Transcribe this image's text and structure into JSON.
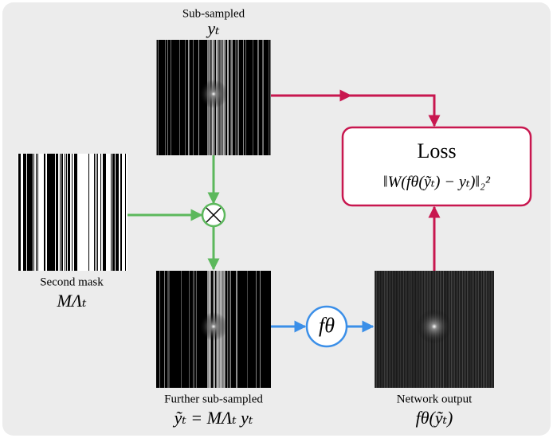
{
  "top_image": {
    "title": "Sub-sampled",
    "symbol": "yₜ"
  },
  "mask": {
    "title": "Second mask",
    "symbol": "MΛₜ"
  },
  "further": {
    "title": "Further sub-sampled",
    "symbol": "ỹₜ = MΛₜ yₜ"
  },
  "output": {
    "title": "Network output",
    "symbol": "fθ(ỹₜ)"
  },
  "network": {
    "symbol": "fθ"
  },
  "loss": {
    "title": "Loss",
    "formula": "‖W(fθ(ỹₜ) − yₜ)‖₂²"
  }
}
